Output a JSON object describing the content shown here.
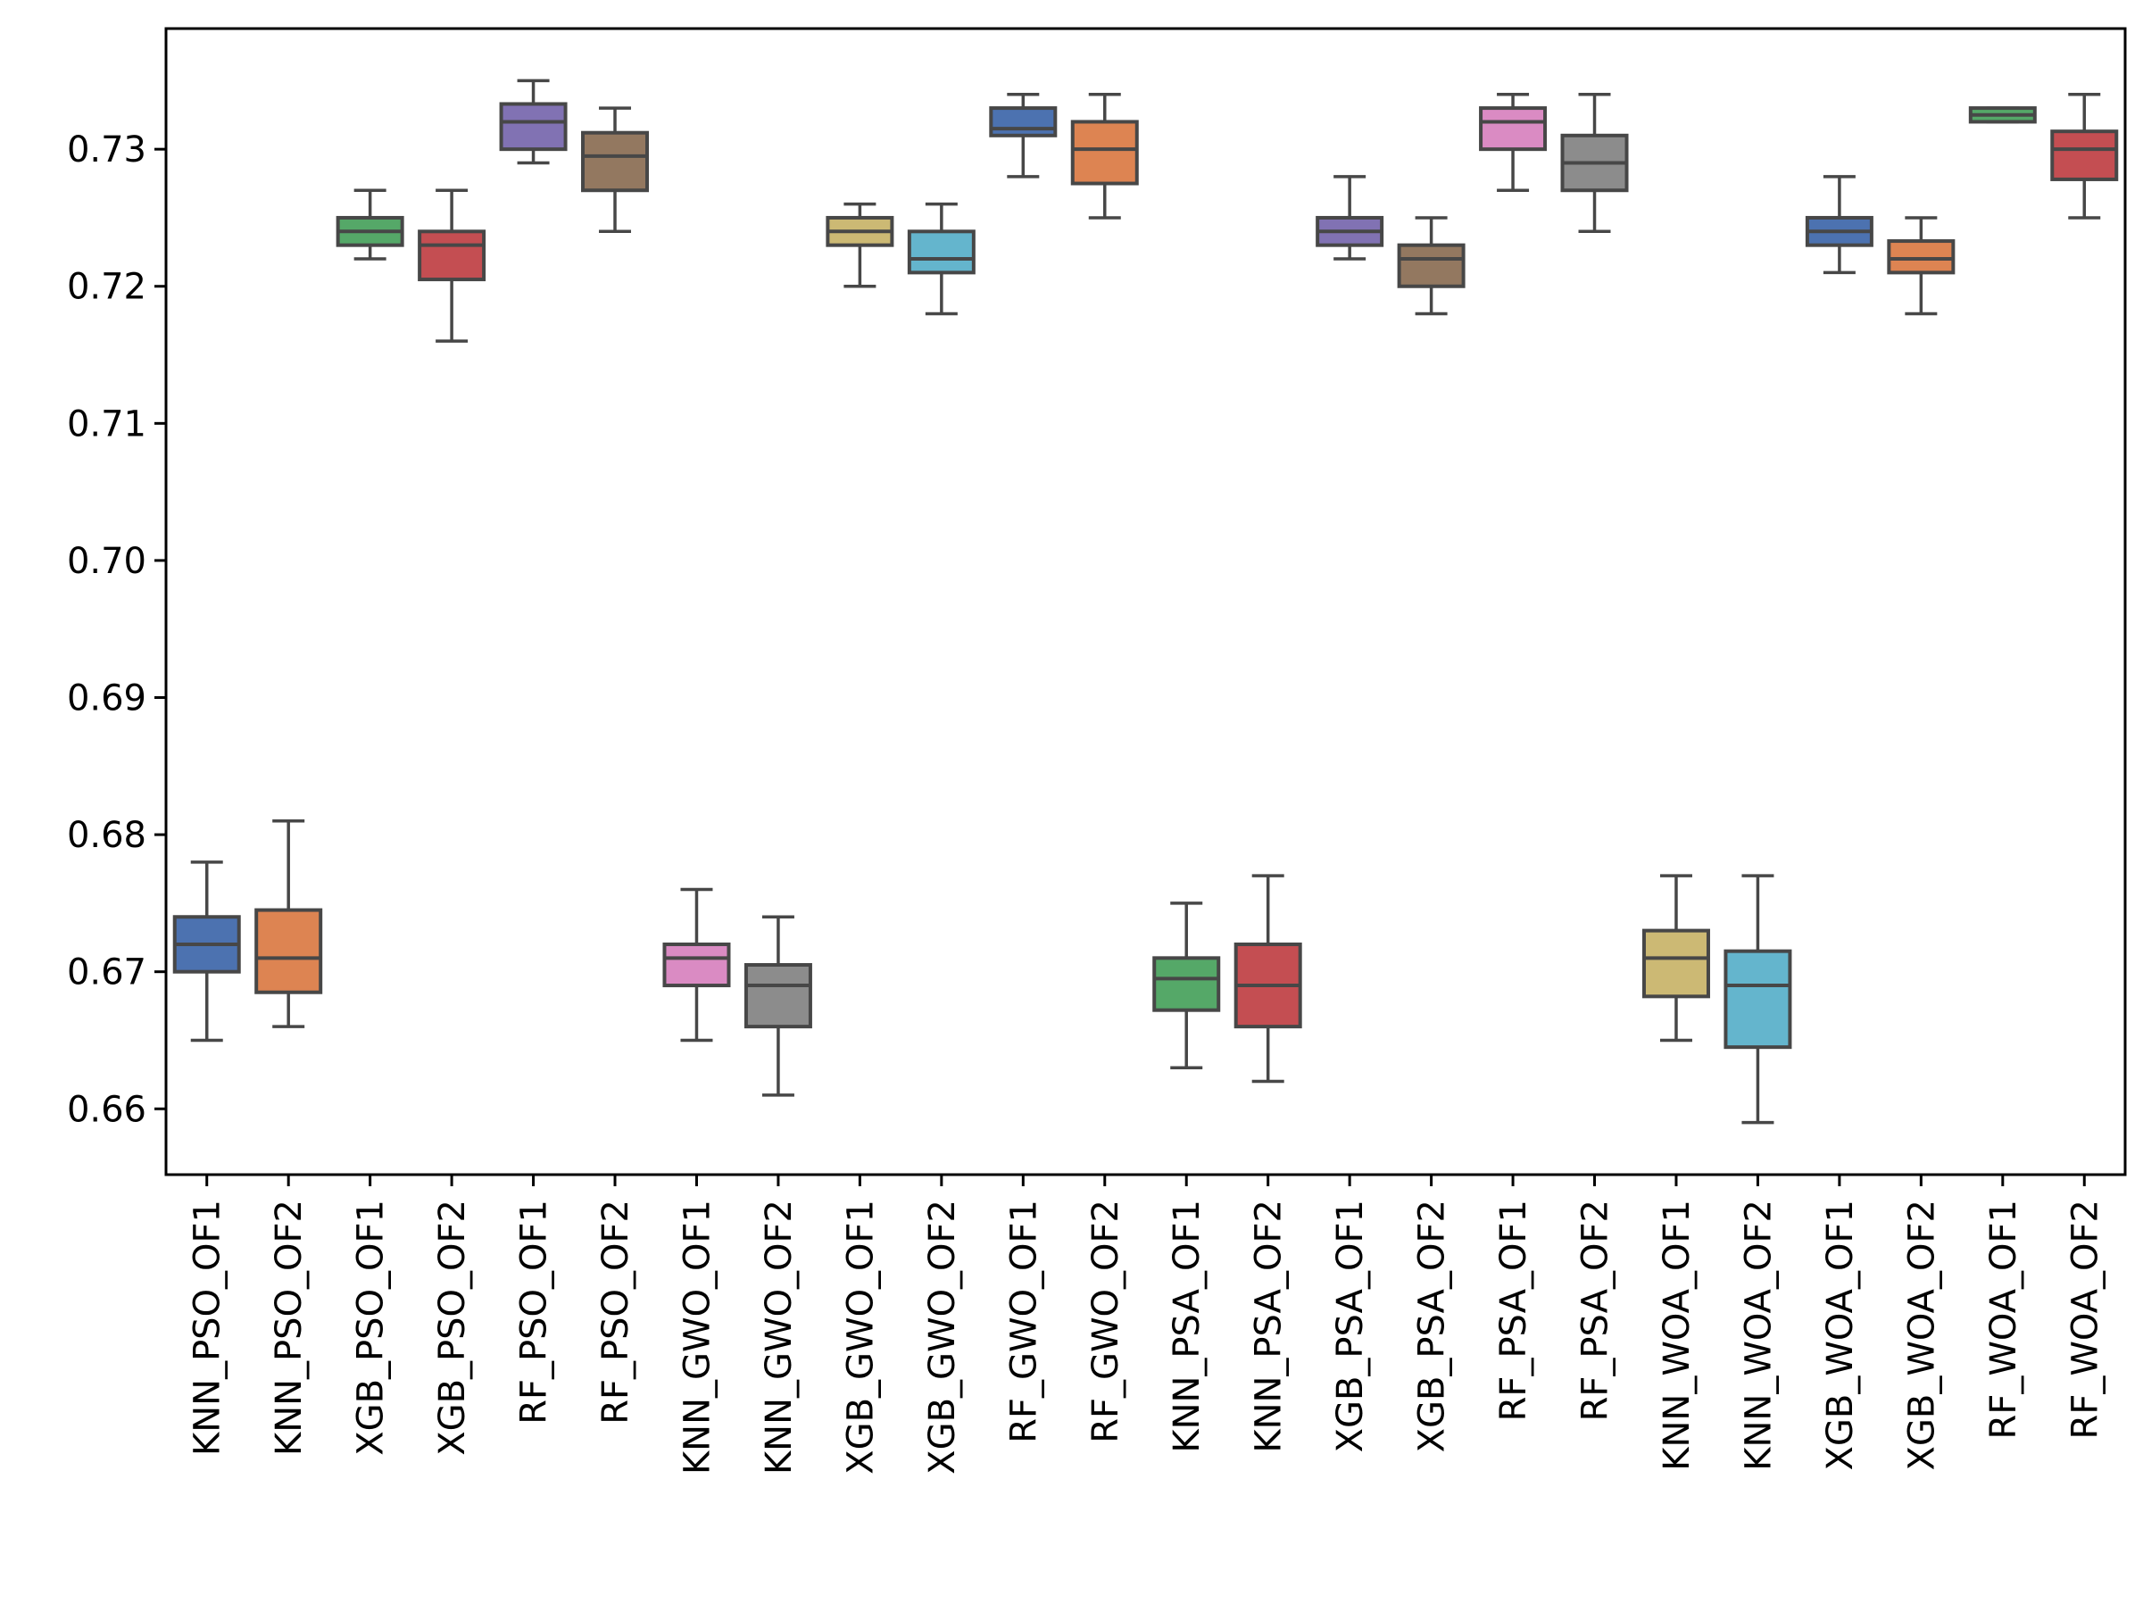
{
  "chart_data": {
    "type": "boxplot",
    "title": "",
    "xlabel": "",
    "ylabel": "",
    "ylim": [
      0.6552,
      0.7388
    ],
    "yticks": [
      0.66,
      0.67,
      0.68,
      0.69,
      0.7,
      0.71,
      0.72,
      0.73
    ],
    "ytick_labels": [
      "0.66",
      "0.67",
      "0.68",
      "0.69",
      "0.70",
      "0.71",
      "0.72",
      "0.73"
    ],
    "grid": false,
    "legend": "none",
    "series": [
      {
        "name": "KNN_PSO_OF1",
        "color": "#4c72b0",
        "whislo": 0.665,
        "q1": 0.67,
        "median": 0.672,
        "q3": 0.674,
        "whishi": 0.678
      },
      {
        "name": "KNN_PSO_OF2",
        "color": "#dd8452",
        "whislo": 0.666,
        "q1": 0.6685,
        "median": 0.671,
        "q3": 0.6745,
        "whishi": 0.681
      },
      {
        "name": "XGB_PSO_OF1",
        "color": "#55a868",
        "whislo": 0.722,
        "q1": 0.723,
        "median": 0.724,
        "q3": 0.725,
        "whishi": 0.727
      },
      {
        "name": "XGB_PSO_OF2",
        "color": "#c44e52",
        "whislo": 0.716,
        "q1": 0.7205,
        "median": 0.723,
        "q3": 0.724,
        "whishi": 0.727
      },
      {
        "name": "RF_PSO_OF1",
        "color": "#8172b3",
        "whislo": 0.729,
        "q1": 0.73,
        "median": 0.732,
        "q3": 0.7333,
        "whishi": 0.735
      },
      {
        "name": "RF_PSO_OF2",
        "color": "#937860",
        "whislo": 0.724,
        "q1": 0.727,
        "median": 0.7295,
        "q3": 0.7312,
        "whishi": 0.733
      },
      {
        "name": "KNN_GWO_OF1",
        "color": "#da8bc3",
        "whislo": 0.665,
        "q1": 0.669,
        "median": 0.671,
        "q3": 0.672,
        "whishi": 0.676
      },
      {
        "name": "KNN_GWO_OF2",
        "color": "#8c8c8c",
        "whislo": 0.661,
        "q1": 0.666,
        "median": 0.669,
        "q3": 0.6705,
        "whishi": 0.674
      },
      {
        "name": "XGB_GWO_OF1",
        "color": "#ccb974",
        "whislo": 0.72,
        "q1": 0.723,
        "median": 0.724,
        "q3": 0.725,
        "whishi": 0.726
      },
      {
        "name": "XGB_GWO_OF2",
        "color": "#64b5cd",
        "whislo": 0.718,
        "q1": 0.721,
        "median": 0.722,
        "q3": 0.724,
        "whishi": 0.726
      },
      {
        "name": "RF_GWO_OF1",
        "color": "#4c72b0",
        "whislo": 0.728,
        "q1": 0.731,
        "median": 0.7315,
        "q3": 0.733,
        "whishi": 0.734
      },
      {
        "name": "RF_GWO_OF2",
        "color": "#dd8452",
        "whislo": 0.725,
        "q1": 0.7275,
        "median": 0.73,
        "q3": 0.732,
        "whishi": 0.734
      },
      {
        "name": "KNN_PSA_OF1",
        "color": "#55a868",
        "whislo": 0.663,
        "q1": 0.6672,
        "median": 0.6695,
        "q3": 0.671,
        "whishi": 0.675
      },
      {
        "name": "KNN_PSA_OF2",
        "color": "#c44e52",
        "whislo": 0.662,
        "q1": 0.666,
        "median": 0.669,
        "q3": 0.672,
        "whishi": 0.677
      },
      {
        "name": "XGB_PSA_OF1",
        "color": "#8172b3",
        "whislo": 0.722,
        "q1": 0.723,
        "median": 0.724,
        "q3": 0.725,
        "whishi": 0.728
      },
      {
        "name": "XGB_PSA_OF2",
        "color": "#937860",
        "whislo": 0.718,
        "q1": 0.72,
        "median": 0.722,
        "q3": 0.723,
        "whishi": 0.725
      },
      {
        "name": "RF_PSA_OF1",
        "color": "#da8bc3",
        "whislo": 0.727,
        "q1": 0.73,
        "median": 0.732,
        "q3": 0.733,
        "whishi": 0.734
      },
      {
        "name": "RF_PSA_OF2",
        "color": "#8c8c8c",
        "whislo": 0.724,
        "q1": 0.727,
        "median": 0.729,
        "q3": 0.731,
        "whishi": 0.734
      },
      {
        "name": "KNN_WOA_OF1",
        "color": "#ccb974",
        "whislo": 0.665,
        "q1": 0.6682,
        "median": 0.671,
        "q3": 0.673,
        "whishi": 0.677
      },
      {
        "name": "KNN_WOA_OF2",
        "color": "#64b5cd",
        "whislo": 0.659,
        "q1": 0.6645,
        "median": 0.669,
        "q3": 0.6715,
        "whishi": 0.677
      },
      {
        "name": "XGB_WOA_OF1",
        "color": "#4c72b0",
        "whislo": 0.721,
        "q1": 0.723,
        "median": 0.724,
        "q3": 0.725,
        "whishi": 0.728
      },
      {
        "name": "XGB_WOA_OF2",
        "color": "#dd8452",
        "whislo": 0.718,
        "q1": 0.721,
        "median": 0.722,
        "q3": 0.7233,
        "whishi": 0.725
      },
      {
        "name": "RF_WOA_OF1",
        "color": "#55a868",
        "whislo": 0.732,
        "q1": 0.732,
        "median": 0.7325,
        "q3": 0.733,
        "whishi": 0.733
      },
      {
        "name": "RF_WOA_OF2",
        "color": "#c44e52",
        "whislo": 0.725,
        "q1": 0.7278,
        "median": 0.73,
        "q3": 0.7313,
        "whishi": 0.734
      }
    ]
  }
}
